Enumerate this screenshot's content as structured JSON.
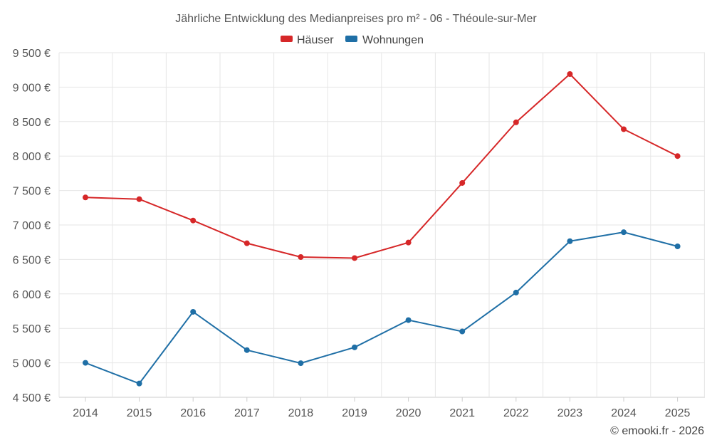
{
  "chart_data": {
    "type": "line",
    "title": "Jährliche Entwicklung des Medianpreises pro m² - 06 - Théoule-sur-Mer",
    "categories": [
      "2014",
      "2015",
      "2016",
      "2017",
      "2018",
      "2019",
      "2020",
      "2021",
      "2022",
      "2023",
      "2024",
      "2025"
    ],
    "series": [
      {
        "name": "Häuser",
        "color": "#d62728",
        "values": [
          7400,
          7375,
          7065,
          6735,
          6535,
          6520,
          6745,
          7610,
          8490,
          9190,
          8390,
          8000
        ]
      },
      {
        "name": "Wohnungen",
        "color": "#1f6fa6",
        "values": [
          5000,
          4700,
          5740,
          5185,
          4995,
          5225,
          5620,
          5455,
          6020,
          6765,
          6895,
          6690
        ]
      }
    ],
    "ylim": [
      4500,
      9500
    ],
    "yticks": [
      4500,
      5000,
      5500,
      6000,
      6500,
      7000,
      7500,
      8000,
      8500,
      9000,
      9500
    ],
    "ytick_labels": [
      "4 500 €",
      "5 000 €",
      "5 500 €",
      "6 000 €",
      "6 500 €",
      "7 000 €",
      "7 500 €",
      "8 000 €",
      "8 500 €",
      "9 000 €",
      "9 500 €"
    ],
    "xlabel": "",
    "ylabel": "",
    "grid": true,
    "legend_position": "top-center"
  },
  "credit": "© emooki.fr - 2026"
}
